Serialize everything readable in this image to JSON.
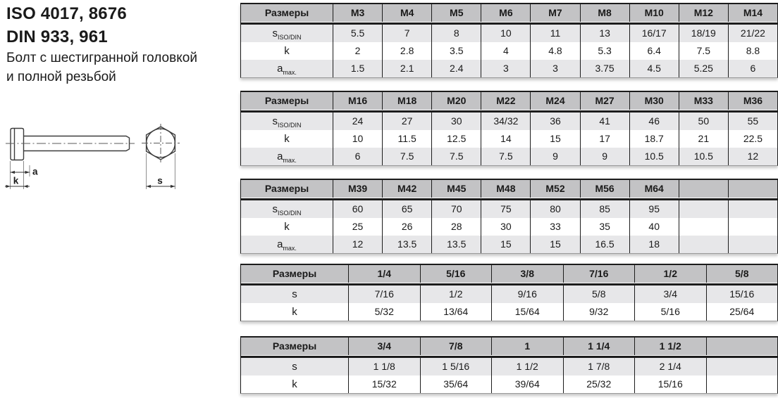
{
  "page": {
    "title_line1": "ISO 4017, 8676",
    "title_line2": "DIN 933, 961",
    "subtitle_line1": "Болт с шестигранной головкой",
    "subtitle_line2": "и полной резьбой"
  },
  "drawing": {
    "labels": {
      "a": "a",
      "k": "k",
      "s": "s"
    }
  },
  "tables": [
    {
      "corner_label": "Размеры",
      "columns": [
        "M3",
        "M4",
        "M5",
        "M6",
        "M7",
        "M8",
        "M10",
        "M12",
        "M14"
      ],
      "rows": [
        {
          "label": "s",
          "sub": "ISO/DIN",
          "values": [
            "5.5",
            "7",
            "8",
            "10",
            "11",
            "13",
            "16/17",
            "18/19",
            "21/22"
          ]
        },
        {
          "label": "k",
          "sub": "",
          "values": [
            "2",
            "2.8",
            "3.5",
            "4",
            "4.8",
            "5.3",
            "6.4",
            "7.5",
            "8.8"
          ]
        },
        {
          "label": "a",
          "sub": "max.",
          "values": [
            "1.5",
            "2.1",
            "2.4",
            "3",
            "3",
            "3.75",
            "4.5",
            "5.25",
            "6"
          ]
        }
      ]
    },
    {
      "corner_label": "Размеры",
      "columns": [
        "M16",
        "M18",
        "M20",
        "M22",
        "M24",
        "M27",
        "M30",
        "M33",
        "M36"
      ],
      "rows": [
        {
          "label": "s",
          "sub": "ISO/DIN",
          "values": [
            "24",
            "27",
            "30",
            "34/32",
            "36",
            "41",
            "46",
            "50",
            "55"
          ]
        },
        {
          "label": "k",
          "sub": "",
          "values": [
            "10",
            "11.5",
            "12.5",
            "14",
            "15",
            "17",
            "18.7",
            "21",
            "22.5"
          ]
        },
        {
          "label": "a",
          "sub": "max.",
          "values": [
            "6",
            "7.5",
            "7.5",
            "7.5",
            "9",
            "9",
            "10.5",
            "10.5",
            "12"
          ]
        }
      ]
    },
    {
      "corner_label": "Размеры",
      "columns": [
        "M39",
        "M42",
        "M45",
        "M48",
        "M52",
        "M56",
        "M64",
        "",
        ""
      ],
      "rows": [
        {
          "label": "s",
          "sub": "ISO/DIN",
          "values": [
            "60",
            "65",
            "70",
            "75",
            "80",
            "85",
            "95",
            "",
            ""
          ]
        },
        {
          "label": "k",
          "sub": "",
          "values": [
            "25",
            "26",
            "28",
            "30",
            "33",
            "35",
            "40",
            "",
            ""
          ]
        },
        {
          "label": "a",
          "sub": "max.",
          "values": [
            "12",
            "13.5",
            "13.5",
            "15",
            "15",
            "16.5",
            "18",
            "",
            ""
          ]
        }
      ]
    },
    {
      "corner_label": "Размеры",
      "columns": [
        "1/4",
        "5/16",
        "3/8",
        "7/16",
        "1/2",
        "5/8"
      ],
      "rows": [
        {
          "label": "s",
          "sub": "",
          "values": [
            "7/16",
            "1/2",
            "9/16",
            "5/8",
            "3/4",
            "15/16"
          ]
        },
        {
          "label": "k",
          "sub": "",
          "values": [
            "5/32",
            "13/64",
            "15/64",
            "9/32",
            "5/16",
            "25/64"
          ]
        }
      ]
    },
    {
      "corner_label": "Размеры",
      "columns": [
        "3/4",
        "7/8",
        "1",
        "1 1/4",
        "1 1/2",
        ""
      ],
      "rows": [
        {
          "label": "s",
          "sub": "",
          "values": [
            "1 1/8",
            "1 5/16",
            "1 1/2",
            "1 7/8",
            "2 1/4",
            ""
          ]
        },
        {
          "label": "k",
          "sub": "",
          "values": [
            "15/32",
            "35/64",
            "39/64",
            "25/32",
            "15/16",
            ""
          ]
        }
      ]
    }
  ],
  "colors": {
    "header_bg": "#c3c3c5",
    "row_shaded_bg": "#e7e7e9",
    "border": "#1c1c1c"
  }
}
